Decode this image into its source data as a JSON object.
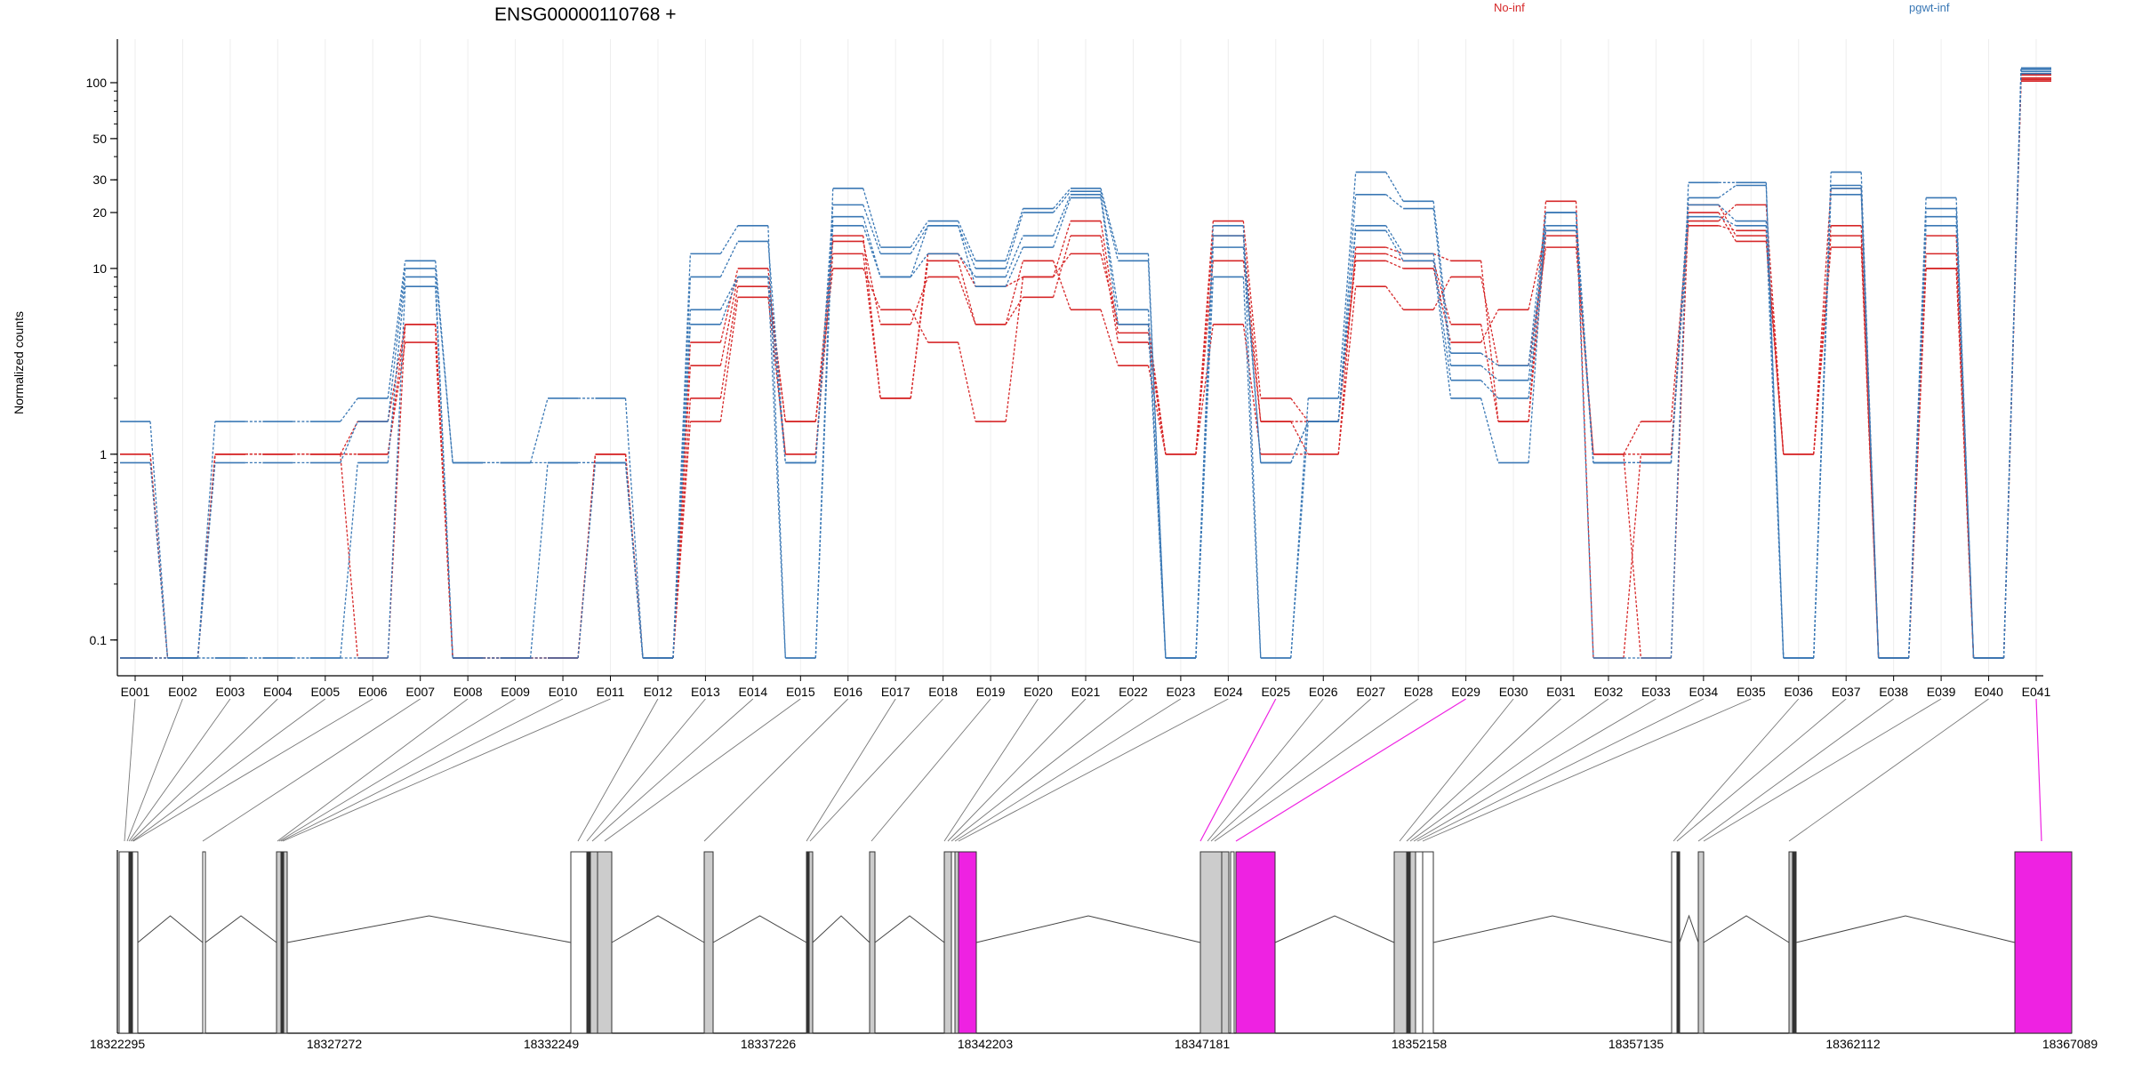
{
  "chart_data": {
    "type": "line",
    "title": "ENSG00000110768 +",
    "ylabel": "Normalized counts",
    "y_scale": "log",
    "y_ticks": [
      0.1,
      1,
      10,
      20,
      30,
      50,
      100
    ],
    "y_tick_labels": [
      "0.1",
      "1",
      "10",
      "20",
      "30",
      "50",
      "100"
    ],
    "grid": "vertical",
    "legend": [
      {
        "name": "No-inf",
        "color": "#d62728"
      },
      {
        "name": "pgwt-inf",
        "color": "#3a78b5"
      }
    ],
    "categories": [
      "E001",
      "E002",
      "E003",
      "E004",
      "E005",
      "E006",
      "E007",
      "E008",
      "E009",
      "E010",
      "E011",
      "E012",
      "E013",
      "E014",
      "E015",
      "E016",
      "E017",
      "E018",
      "E019",
      "E020",
      "E021",
      "E022",
      "E023",
      "E024",
      "E025",
      "E026",
      "E027",
      "E028",
      "E029",
      "E030",
      "E031",
      "E032",
      "E033",
      "E034",
      "E035",
      "E036",
      "E037",
      "E038",
      "E039",
      "E040",
      "E041"
    ],
    "series": [
      {
        "group": "No-inf",
        "color": "#d62728",
        "values": [
          1.0,
          0.08,
          1.0,
          1.0,
          1.0,
          1.0,
          5.0,
          0.08,
          0.08,
          0.08,
          1.0,
          0.08,
          1.5,
          7.0,
          1.0,
          12.0,
          2.0,
          12.0,
          8.0,
          9.0,
          12.0,
          5.0,
          1.0,
          18.0,
          2.0,
          1.5,
          12.0,
          11.0,
          5.0,
          1.5,
          23.0,
          0.08,
          1.0,
          17.0,
          16.0,
          1.0,
          17.0,
          0.08,
          15.0,
          0.08,
          110
        ]
      },
      {
        "group": "No-inf",
        "color": "#d62728",
        "values": [
          0.08,
          0.08,
          1.0,
          1.0,
          1.0,
          1.0,
          4.0,
          0.08,
          0.08,
          0.08,
          1.0,
          0.08,
          2.0,
          8.0,
          1.5,
          14.0,
          5.0,
          9.0,
          5.0,
          7.0,
          15.0,
          4.0,
          1.0,
          11.0,
          1.5,
          1.5,
          11.0,
          10.0,
          4.0,
          6.0,
          16.0,
          1.0,
          0.08,
          20.0,
          14.0,
          1.0,
          15.0,
          0.08,
          12.0,
          0.08,
          106
        ]
      },
      {
        "group": "No-inf",
        "color": "#d62728",
        "values": [
          1.0,
          0.08,
          1.0,
          1.0,
          1.0,
          1.5,
          5.0,
          0.08,
          0.08,
          0.08,
          1.0,
          0.08,
          3.0,
          9.0,
          1.5,
          10.0,
          6.0,
          4.0,
          1.5,
          9.0,
          18.0,
          4.5,
          1.0,
          5.0,
          1.0,
          1.0,
          8.0,
          6.0,
          9.0,
          3.0,
          13.0,
          1.0,
          1.5,
          18.0,
          22.0,
          1.0,
          27.0,
          0.08,
          10.0,
          0.08,
          104
        ]
      },
      {
        "group": "No-inf",
        "color": "#d62728",
        "values": [
          0.08,
          0.08,
          1.0,
          1.0,
          1.0,
          0.08,
          5.0,
          0.08,
          0.08,
          0.08,
          1.0,
          0.08,
          4.0,
          10.0,
          1.0,
          15.0,
          2.0,
          11.0,
          5.0,
          11.0,
          6.0,
          3.0,
          1.0,
          15.0,
          1.5,
          1.0,
          13.0,
          12.0,
          11.0,
          1.5,
          15.0,
          1.0,
          1.0,
          22.0,
          15.0,
          1.0,
          13.0,
          0.08,
          10.0,
          0.08,
          102
        ]
      },
      {
        "group": "pgwt-inf",
        "color": "#3a78b5",
        "values": [
          1.5,
          0.08,
          1.5,
          1.5,
          1.5,
          2.0,
          11.0,
          0.9,
          0.9,
          2.0,
          2.0,
          0.08,
          12.0,
          17.0,
          0.08,
          27.0,
          13.0,
          18.0,
          11.0,
          21.0,
          27.0,
          12.0,
          0.08,
          17.0,
          0.08,
          2.0,
          33.0,
          23.0,
          3.5,
          3.0,
          20.0,
          0.08,
          0.08,
          29.0,
          29.0,
          0.08,
          33.0,
          0.08,
          24.0,
          0.08,
          120
        ]
      },
      {
        "group": "pgwt-inf",
        "color": "#3a78b5",
        "values": [
          0.9,
          0.08,
          0.9,
          0.9,
          0.9,
          1.5,
          10.0,
          0.9,
          0.9,
          0.9,
          0.9,
          0.08,
          9.0,
          14.0,
          0.9,
          22.0,
          12.0,
          17.0,
          10.0,
          20.0,
          26.0,
          11.0,
          0.08,
          15.0,
          0.9,
          1.5,
          25.0,
          21.0,
          3.0,
          2.5,
          17.0,
          0.9,
          0.9,
          24.0,
          28.0,
          0.08,
          28.0,
          0.08,
          21.0,
          0.08,
          118
        ]
      },
      {
        "group": "pgwt-inf",
        "color": "#3a78b5",
        "values": [
          0.08,
          0.08,
          0.08,
          0.08,
          0.08,
          0.9,
          9.0,
          0.08,
          0.08,
          0.9,
          0.9,
          0.08,
          6.0,
          9.0,
          0.9,
          17.0,
          9.0,
          12.0,
          9.0,
          15.0,
          25.0,
          6.0,
          0.08,
          13.0,
          0.9,
          1.5,
          17.0,
          12.0,
          2.5,
          2.0,
          16.0,
          0.9,
          0.9,
          22.0,
          18.0,
          0.08,
          27.0,
          0.08,
          19.0,
          0.08,
          115
        ]
      },
      {
        "group": "pgwt-inf",
        "color": "#3a78b5",
        "values": [
          0.08,
          0.08,
          0.08,
          0.08,
          0.08,
          0.08,
          8.0,
          0.08,
          0.08,
          0.08,
          0.9,
          0.08,
          5.0,
          9.0,
          0.08,
          19.0,
          9.0,
          17.0,
          8.0,
          13.0,
          24.0,
          5.0,
          0.08,
          9.0,
          0.08,
          1.5,
          16.0,
          11.0,
          2.0,
          0.9,
          20.0,
          0.9,
          0.9,
          19.0,
          17.0,
          0.08,
          25.0,
          0.08,
          17.0,
          0.08,
          112
        ]
      }
    ],
    "gene_model": {
      "coordinate_labels": [
        "18322295",
        "18327272",
        "18332249",
        "18337226",
        "18342203",
        "18347181",
        "18352158",
        "18357135",
        "18362112",
        "18367089"
      ],
      "highlighted_exons": [
        "E025",
        "E029",
        "E041"
      ],
      "highlight_color": "#ee22e2"
    }
  }
}
